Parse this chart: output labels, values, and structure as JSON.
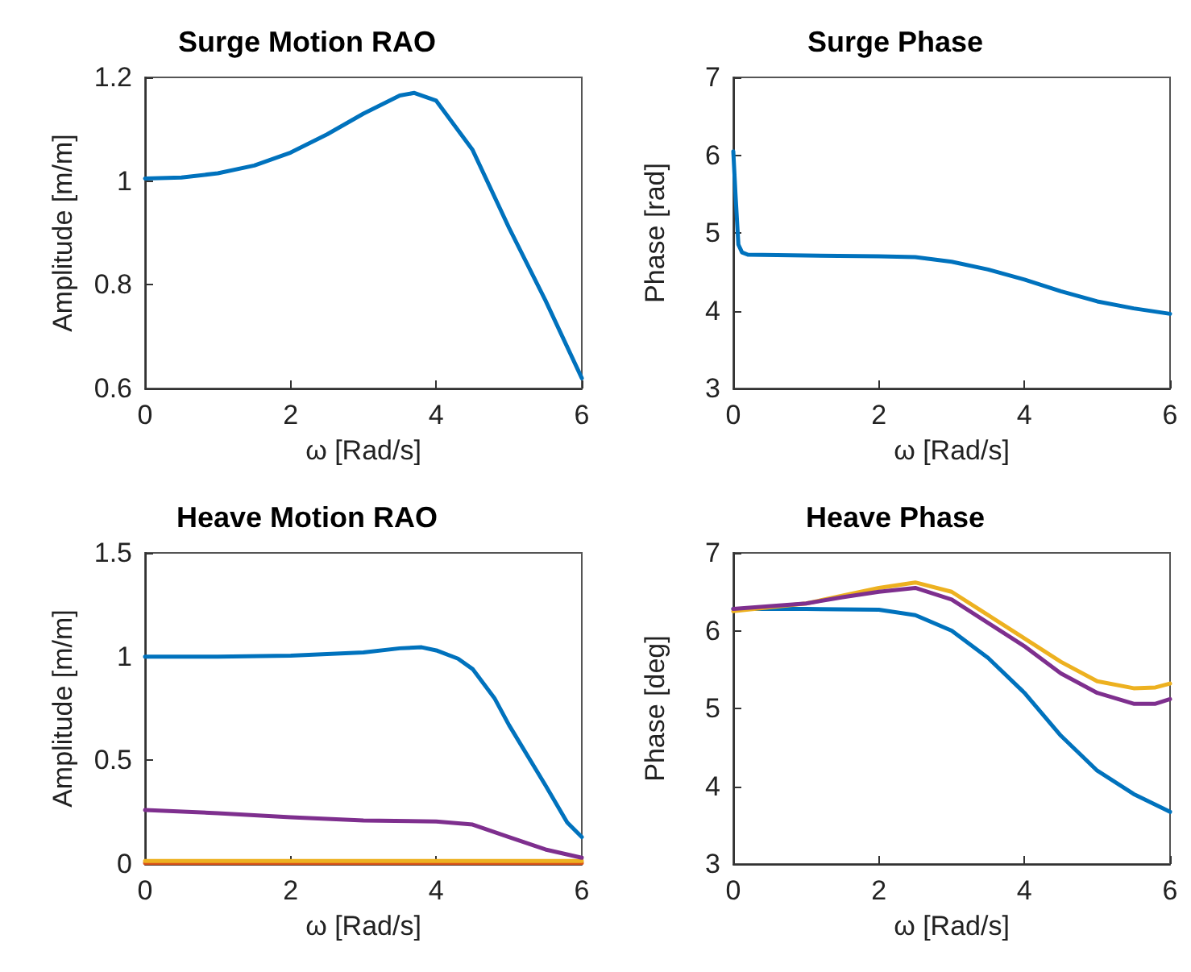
{
  "chart_data": [
    {
      "type": "line",
      "title": "Surge Motion RAO",
      "xlabel": "ω [Rad/s]",
      "ylabel": "Amplitude [m/m]",
      "xlim": [
        0,
        6
      ],
      "xticks": [
        0,
        2,
        4,
        6
      ],
      "ylim": [
        0.6,
        1.2
      ],
      "yticks": [
        0.6,
        0.8,
        1,
        1.2
      ],
      "marker": "none",
      "line_style": "solid",
      "series": [
        {
          "color": "#0072bd",
          "x": [
            0,
            0.5,
            1,
            1.5,
            2,
            2.5,
            3,
            3.5,
            3.7,
            4,
            4.5,
            5,
            5.5,
            6
          ],
          "values": [
            1.005,
            1.007,
            1.015,
            1.03,
            1.055,
            1.09,
            1.13,
            1.165,
            1.17,
            1.155,
            1.06,
            0.91,
            0.77,
            0.62
          ]
        }
      ]
    },
    {
      "type": "line",
      "title": "Surge Phase",
      "xlabel": "ω [Rad/s]",
      "ylabel": "Phase [rad]",
      "xlim": [
        0,
        6
      ],
      "xticks": [
        0,
        2,
        4,
        6
      ],
      "ylim": [
        3,
        7
      ],
      "yticks": [
        3,
        4,
        5,
        6,
        7
      ],
      "marker": "none",
      "line_style": "solid",
      "series": [
        {
          "color": "#0072bd",
          "x": [
            0,
            0.03,
            0.07,
            0.12,
            0.2,
            1,
            2,
            2.5,
            3,
            3.5,
            4,
            4.5,
            5,
            5.5,
            6
          ],
          "values": [
            6.05,
            5.5,
            4.85,
            4.75,
            4.72,
            4.71,
            4.7,
            4.69,
            4.63,
            4.53,
            4.4,
            4.25,
            4.12,
            4.03,
            3.96
          ]
        }
      ]
    },
    {
      "type": "line",
      "title": "Heave Motion RAO",
      "xlabel": "ω [Rad/s]",
      "ylabel": "Amplitude [m/m]",
      "xlim": [
        0,
        6
      ],
      "xticks": [
        0,
        2,
        4,
        6
      ],
      "ylim": [
        0,
        1.5
      ],
      "yticks": [
        0,
        0.5,
        1,
        1.5
      ],
      "marker": "none",
      "line_style": "solid",
      "series": [
        {
          "color": "#0072bd",
          "x": [
            0,
            1,
            2,
            3,
            3.5,
            3.8,
            4,
            4.3,
            4.5,
            4.8,
            5,
            5.5,
            5.8,
            6
          ],
          "values": [
            1,
            1,
            1.005,
            1.02,
            1.04,
            1.045,
            1.03,
            0.99,
            0.94,
            0.8,
            0.67,
            0.38,
            0.2,
            0.13
          ]
        },
        {
          "color": "#d95319",
          "x": [
            0,
            6
          ],
          "values": [
            0.005,
            0.005
          ]
        },
        {
          "color": "#edb120",
          "x": [
            0,
            6
          ],
          "values": [
            0.015,
            0.015
          ]
        },
        {
          "color": "#7e2f8e",
          "x": [
            0,
            1,
            2,
            3,
            4,
            4.5,
            5,
            5.5,
            6
          ],
          "values": [
            0.26,
            0.245,
            0.225,
            0.21,
            0.205,
            0.19,
            0.13,
            0.07,
            0.03
          ]
        }
      ]
    },
    {
      "type": "line",
      "title": "Heave Phase",
      "xlabel": "ω [Rad/s]",
      "ylabel": "Phase [deg]",
      "xlim": [
        0,
        6
      ],
      "xticks": [
        0,
        2,
        4,
        6
      ],
      "ylim": [
        3,
        7
      ],
      "yticks": [
        3,
        4,
        5,
        6,
        7
      ],
      "marker": "none",
      "line_style": "solid",
      "series": [
        {
          "color": "#0072bd",
          "x": [
            0,
            1,
            2,
            2.5,
            3,
            3.5,
            4,
            4.5,
            5,
            5.5,
            6
          ],
          "values": [
            6.28,
            6.28,
            6.27,
            6.2,
            6,
            5.65,
            5.2,
            4.65,
            4.2,
            3.9,
            3.67
          ]
        },
        {
          "color": "#edb120",
          "x": [
            0,
            1,
            2,
            2.5,
            3,
            3.5,
            4,
            4.5,
            5,
            5.5,
            5.8,
            6
          ],
          "values": [
            6.25,
            6.35,
            6.55,
            6.62,
            6.5,
            6.2,
            5.9,
            5.6,
            5.35,
            5.26,
            5.27,
            5.32
          ]
        },
        {
          "color": "#7e2f8e",
          "x": [
            0,
            1,
            1.5,
            2,
            2.5,
            3,
            3.5,
            4,
            4.5,
            5,
            5.5,
            5.8,
            6
          ],
          "values": [
            6.28,
            6.35,
            6.43,
            6.5,
            6.55,
            6.4,
            6.1,
            5.8,
            5.45,
            5.2,
            5.06,
            5.06,
            5.12
          ]
        }
      ]
    }
  ]
}
